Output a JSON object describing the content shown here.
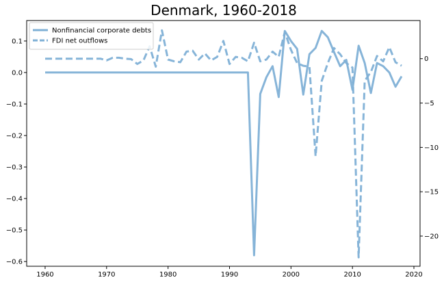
{
  "chart_data": {
    "type": "line",
    "title": "Denmark, 1960-2018",
    "xlabel": "",
    "ylabel_left": "",
    "ylabel_right": "",
    "xlim": [
      1957,
      2021
    ],
    "ylim_left": [
      -0.615,
      0.165
    ],
    "ylim_right": [
      -23.4,
      4.3
    ],
    "xticks": [
      1960,
      1970,
      1980,
      1990,
      2000,
      2010,
      2020
    ],
    "yticks_left": [
      0.1,
      0.0,
      -0.1,
      -0.2,
      -0.3,
      -0.4,
      -0.5,
      -0.6
    ],
    "yticks_right": [
      0,
      -5,
      -10,
      -15,
      -20
    ],
    "legend_position": "top-left",
    "line_color": "#7fb0d6",
    "series": [
      {
        "name": "Nonfinancial corporate debts",
        "axis": "left",
        "style": "solid",
        "x": [
          1960,
          1961,
          1962,
          1963,
          1964,
          1965,
          1966,
          1967,
          1968,
          1969,
          1970,
          1971,
          1972,
          1973,
          1974,
          1975,
          1976,
          1977,
          1978,
          1979,
          1980,
          1981,
          1982,
          1983,
          1984,
          1985,
          1986,
          1987,
          1988,
          1989,
          1990,
          1991,
          1992,
          1993,
          1994,
          1995,
          1996,
          1997,
          1998,
          1999,
          2000,
          2001,
          2002,
          2003,
          2004,
          2005,
          2006,
          2007,
          2008,
          2009,
          2010,
          2011,
          2012,
          2013,
          2014,
          2015,
          2016,
          2017,
          2018
        ],
        "values": [
          0,
          0,
          0,
          0,
          0,
          0,
          0,
          0,
          0,
          0,
          0,
          0,
          0,
          0,
          0,
          0,
          0,
          0,
          0,
          0,
          0,
          0,
          0,
          0,
          0,
          0,
          0,
          0,
          0,
          0,
          0,
          0,
          0,
          0,
          -0.58,
          -0.068,
          -0.015,
          0.02,
          -0.078,
          0.132,
          0.1,
          0.075,
          -0.07,
          0.058,
          0.078,
          0.132,
          0.112,
          0.065,
          0.02,
          0.04,
          -0.055,
          0.085,
          0.03,
          -0.065,
          0.03,
          0.02,
          0.0,
          -0.045,
          -0.012
        ]
      },
      {
        "name": "FDI net outflows",
        "axis": "right",
        "style": "dashed",
        "x": [
          1960,
          1961,
          1962,
          1963,
          1964,
          1965,
          1966,
          1967,
          1968,
          1969,
          1970,
          1971,
          1972,
          1973,
          1974,
          1975,
          1976,
          1977,
          1978,
          1979,
          1980,
          1981,
          1982,
          1983,
          1984,
          1985,
          1986,
          1987,
          1988,
          1989,
          1990,
          1991,
          1992,
          1993,
          1994,
          1995,
          1996,
          1997,
          1998,
          1999,
          2000,
          2001,
          2002,
          2003,
          2004,
          2005,
          2006,
          2007,
          2008,
          2009,
          2010,
          2011,
          2012,
          2013,
          2014,
          2015,
          2016,
          2017,
          2018
        ],
        "values": [
          0,
          0,
          0,
          0,
          0,
          0,
          0,
          0,
          0,
          0,
          -0.2,
          0.1,
          0.1,
          0,
          -0.05,
          -0.6,
          -0.2,
          1.4,
          -0.9,
          3.2,
          -0.1,
          -0.3,
          -0.4,
          0.8,
          0.9,
          -0.1,
          0.6,
          -0.2,
          0.2,
          2.0,
          -0.6,
          0.2,
          0.1,
          -0.3,
          1.8,
          -0.3,
          -0.1,
          0.8,
          0.2,
          3.0,
          1.0,
          -0.5,
          -0.8,
          -0.9,
          -11,
          -2.5,
          -0.5,
          1.2,
          0.5,
          -0.5,
          -1.0,
          -22.4,
          -2.5,
          -1.5,
          0.3,
          -0.3,
          1.3,
          -0.4,
          -0.8
        ]
      }
    ]
  }
}
